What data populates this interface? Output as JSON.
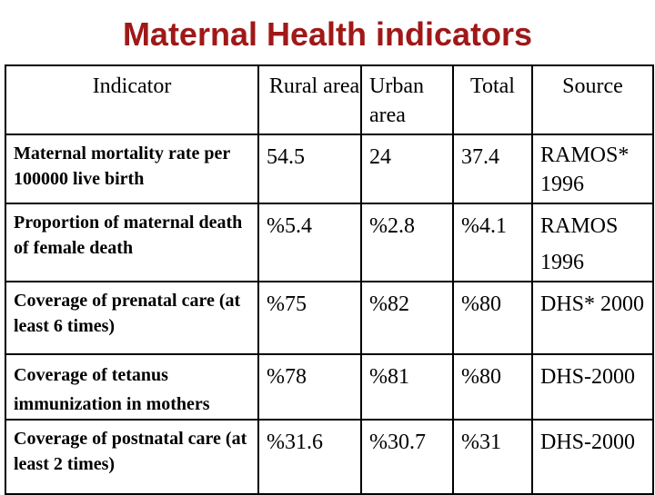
{
  "title": "Maternal Health indicators",
  "table": {
    "headers": {
      "indicator": "Indicator",
      "rural": "Rural area",
      "urban": "Urban area",
      "total": "Total",
      "source": "Source"
    },
    "rows": [
      {
        "indicator": "Maternal mortality rate per 100000 live birth",
        "rural": "54.5",
        "urban": "24",
        "total": "37.4",
        "source": "RAMOS* 1996"
      },
      {
        "indicator": "Proportion of maternal death of female death",
        "rural": "%5.4",
        "urban": "%2.8",
        "total": "%4.1",
        "source": "RAMOS 1996"
      },
      {
        "indicator": "Coverage of prenatal care (at least 6 times)",
        "rural": "%75",
        "urban": "%82",
        "total": "%80",
        "source": "DHS* 2000"
      },
      {
        "indicator": "Coverage of tetanus immunization in mothers",
        "rural": "%78",
        "urban": "%81",
        "total": "%80",
        "source": "DHS-2000"
      },
      {
        "indicator": "Coverage of postnatal care (at least 2 times)",
        "rural": "%31.6",
        "urban": "%30.7",
        "total": "%31",
        "source": "DHS-2000"
      }
    ]
  }
}
